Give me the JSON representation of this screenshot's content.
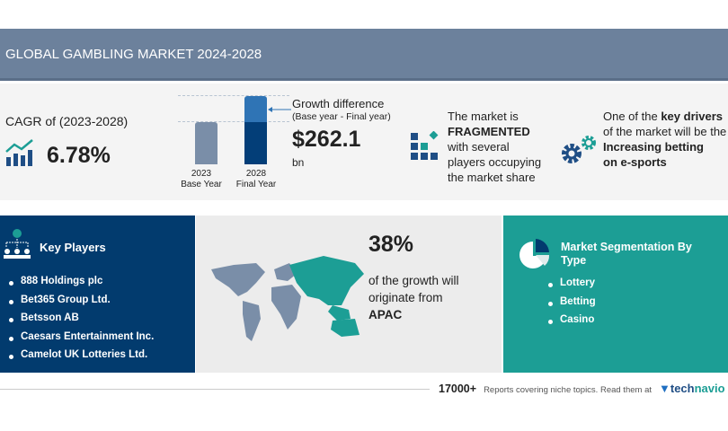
{
  "header": {
    "title": "GLOBAL GAMBLING MARKET 2024-2028"
  },
  "cagr": {
    "label": "CAGR of (2023-2028)",
    "value": "6.78%",
    "icon": "growth-chart-icon"
  },
  "growth": {
    "bars": [
      {
        "year": "2023",
        "label": "Base Year"
      },
      {
        "year": "2028",
        "label": "Final Year"
      }
    ],
    "title": "Growth difference",
    "subtitle": "(Base year - Final year)",
    "value": "$262.1",
    "unit": "bn"
  },
  "fragmented": {
    "line1": "The market is",
    "bold": "FRAGMENTED",
    "line3": "with several",
    "line4": "players occupying",
    "line5": "the market share"
  },
  "drivers": {
    "pre": "One of the ",
    "bold": "key drivers",
    "line2": "of the market will be the",
    "line3": "Increasing betting",
    "line4": "on e-sports"
  },
  "key_players": {
    "title": "Key Players",
    "items": [
      "888 Holdings plc",
      "Bet365 Group Ltd.",
      "Betsson AB",
      "Caesars Entertainment Inc.",
      "Camelot UK Lotteries Ltd."
    ]
  },
  "region": {
    "percent": "38%",
    "text1": "of the growth will",
    "text2": "originate from",
    "region": "APAC"
  },
  "segmentation": {
    "title1": "Market Segmentation By",
    "title2": "Type",
    "items": [
      "Lottery",
      "Betting",
      "Casino"
    ]
  },
  "footer": {
    "count": "17000+",
    "text": "Reports covering niche topics. Read them at",
    "brand_a": "tech",
    "brand_b": "navio"
  },
  "colors": {
    "navy": "#023b6e",
    "teal": "#1c9e95",
    "header": "#6c819c"
  }
}
